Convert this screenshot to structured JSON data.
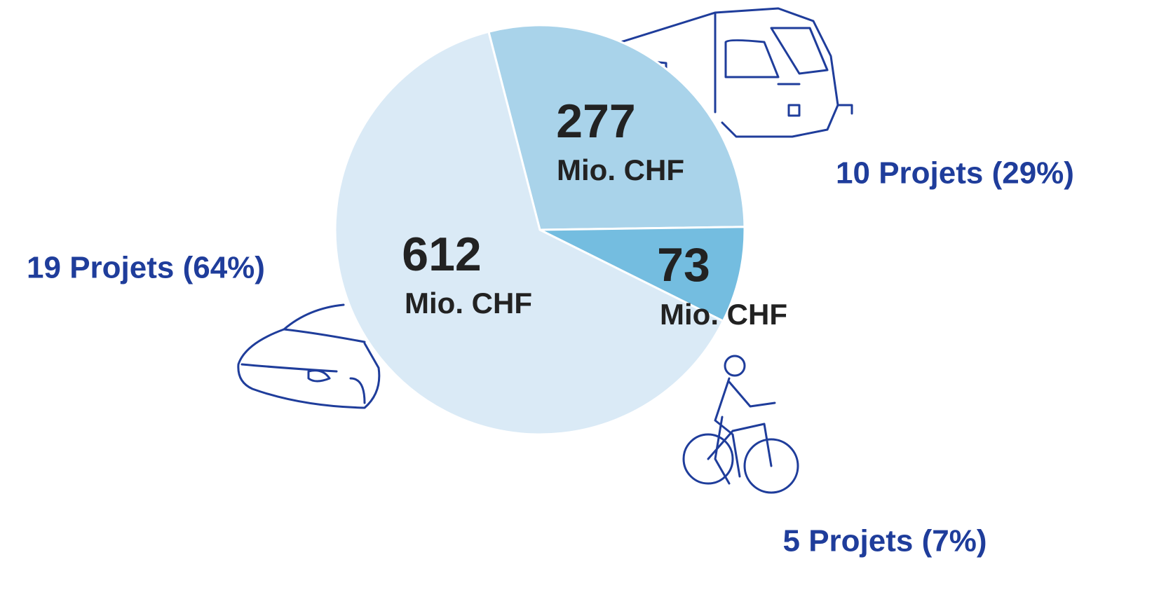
{
  "chart_data": {
    "type": "pie",
    "categories": [
      "10 Projets (29%)",
      "5 Projets (7%)",
      "19 Projets (64%)"
    ],
    "values": [
      277,
      73,
      612
    ],
    "unit_labels": [
      "Mio. CHF",
      "Mio. CHF",
      "Mio. CHF"
    ],
    "colors": [
      "#a9d3ea",
      "#74bde0",
      "#daeaf6"
    ],
    "label_color": "#1f3d9b"
  }
}
